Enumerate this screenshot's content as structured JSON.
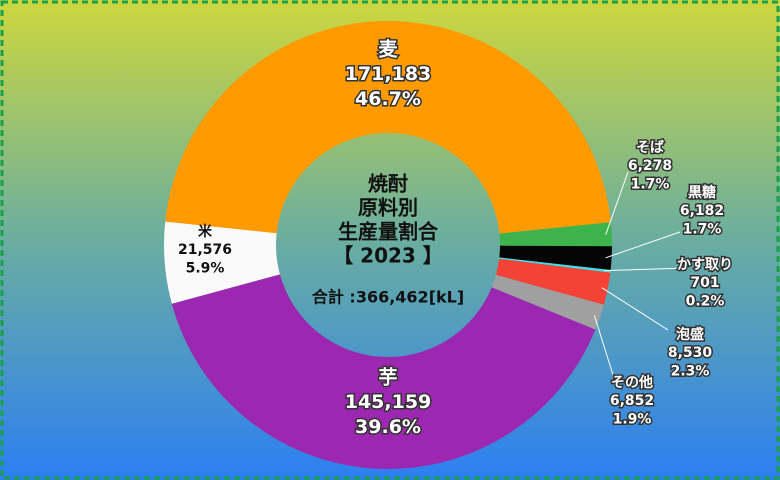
{
  "chart_data": {
    "type": "donut",
    "title_lines": [
      "焼酎",
      "原料別",
      "生産量割合",
      "【 2023 】"
    ],
    "total_label": "合計 :366,462[kL]",
    "categories": [
      "麦",
      "そば",
      "黒糖",
      "かす取り",
      "泡盛",
      "その他",
      "芋",
      "米"
    ],
    "values": [
      171183,
      6278,
      6182,
      701,
      8530,
      6852,
      145159,
      21576
    ],
    "value_labels": [
      "171,183",
      "6,278",
      "6,182",
      "701",
      "8,530",
      "6,852",
      "145,159",
      "21,576"
    ],
    "percent_labels": [
      "46.7%",
      "1.7%",
      "1.7%",
      "0.2%",
      "2.3%",
      "1.9%",
      "39.6%",
      "5.9%"
    ],
    "colors": [
      "#ff9a00",
      "#3cb44b",
      "#050505",
      "#3fe0e8",
      "#f44336",
      "#a0a0a0",
      "#9c27b0",
      "#fafafa"
    ]
  }
}
